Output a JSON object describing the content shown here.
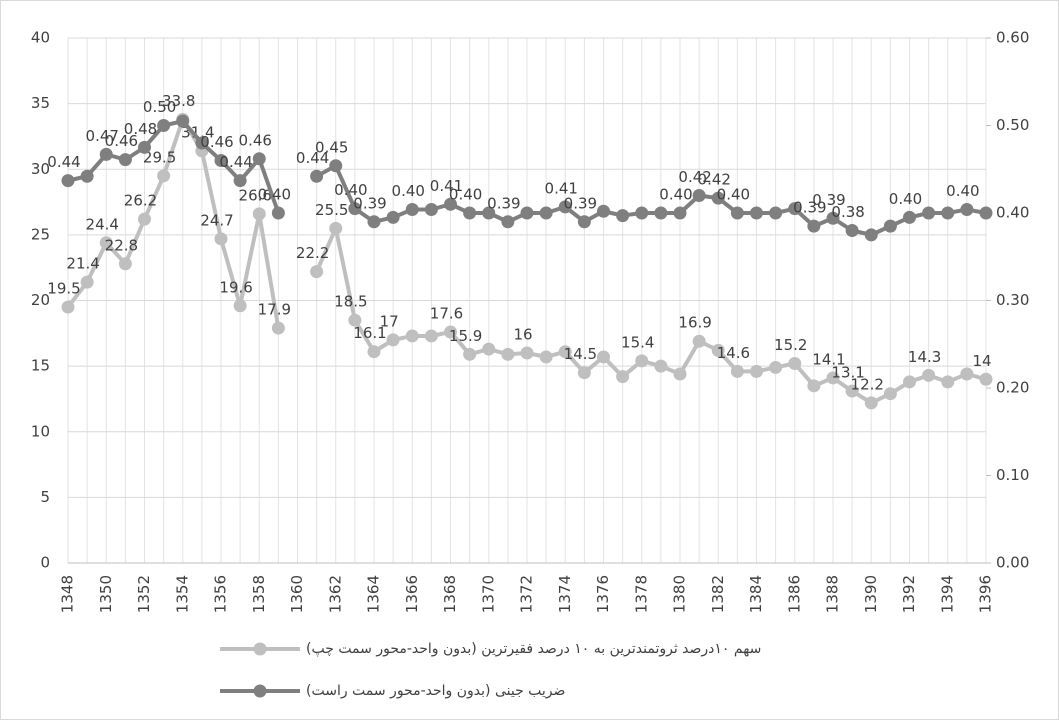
{
  "chart_data": {
    "type": "line",
    "categories": [
      1348,
      null,
      1350,
      null,
      1352,
      null,
      1354,
      null,
      1356,
      null,
      1358,
      null,
      1360,
      null,
      1362,
      null,
      1364,
      null,
      1366,
      null,
      1368,
      null,
      1370,
      null,
      1372,
      null,
      1374,
      null,
      1376,
      null,
      1378,
      null,
      1380,
      null,
      1382,
      null,
      1384,
      null,
      1386,
      null,
      1388,
      null,
      1390,
      null,
      1392,
      null,
      1394,
      null,
      1396
    ],
    "series": [
      {
        "name": "سهم ۱۰درصد ثروتمندترین به ۱۰ درصد فقیرترین (بدون واحد-محور سمت چپ)",
        "color": "#bfbfbf",
        "axis": "y",
        "values": [
          19.5,
          21.4,
          24.4,
          22.8,
          26.2,
          29.5,
          33.8,
          31.4,
          24.7,
          19.6,
          26.6,
          17.9,
          null,
          22.2,
          25.5,
          18.5,
          16.1,
          17,
          17.3,
          17.3,
          17.6,
          15.9,
          16.3,
          15.9,
          16,
          15.7,
          16.1,
          14.5,
          15.7,
          14.2,
          15.4,
          15.0,
          14.4,
          16.9,
          16.2,
          14.6,
          14.6,
          14.9,
          15.2,
          13.5,
          14.1,
          13.1,
          12.2,
          12.9,
          13.8,
          14.3,
          13.8,
          14.4,
          14
        ],
        "value_labels": [
          "19.5",
          "21.4",
          "24.4",
          "22.8",
          "26.2",
          "29.5",
          "33.8",
          "31.4",
          "24.7",
          "19.6",
          "26.6",
          "17.9",
          null,
          "22.2",
          "25.5",
          "18.5",
          "16.1",
          "17",
          null,
          null,
          "17.6",
          "15.9",
          null,
          null,
          "16",
          null,
          null,
          "14.5",
          null,
          null,
          "15.4",
          null,
          null,
          "16.9",
          null,
          "14.6",
          null,
          null,
          "15.2",
          null,
          "14.1",
          "13.1",
          "12.2",
          null,
          null,
          "14.3",
          null,
          null,
          "14"
        ]
      },
      {
        "name": "ضریب جینی (بدون واحد-محور سمت راست)",
        "color": "#7f7f7f",
        "axis": "y2",
        "values": [
          0.437,
          0.442,
          0.467,
          0.461,
          0.475,
          0.5,
          0.505,
          0.48,
          0.46,
          0.437,
          0.462,
          0.4,
          null,
          0.442,
          0.454,
          0.405,
          0.39,
          0.395,
          0.404,
          0.404,
          0.41,
          0.4,
          0.4,
          0.39,
          0.4,
          0.4,
          0.407,
          0.39,
          0.402,
          0.397,
          0.4,
          0.4,
          0.4,
          0.42,
          0.417,
          0.4,
          0.4,
          0.4,
          0.405,
          0.385,
          0.394,
          0.38,
          0.375,
          0.385,
          0.395,
          0.4,
          0.4,
          0.404,
          0.4
        ],
        "value_labels": [
          "0.44",
          null,
          "0.47",
          "0.46",
          "0.48",
          "0.50",
          null,
          null,
          "0.46",
          "0.44",
          "0.46",
          "0.40",
          null,
          "0.44",
          "0.45",
          "0.40",
          "0.39",
          null,
          "0.40",
          null,
          "0.41",
          "0.40",
          null,
          "0.39",
          null,
          null,
          "0.41",
          "0.39",
          null,
          null,
          null,
          null,
          "0.40",
          "0.42",
          "0.42",
          "0.40",
          null,
          null,
          null,
          "0.39",
          "0.39",
          "0.38",
          null,
          null,
          "0.40",
          null,
          null,
          "0.40",
          null
        ]
      }
    ],
    "ylim": [
      0,
      40
    ],
    "yticks": [
      0,
      5,
      10,
      15,
      20,
      25,
      30,
      35,
      40
    ],
    "y2lim": [
      0,
      0.6
    ],
    "y2ticks": [
      {
        "value": 0,
        "label": "0.00"
      },
      {
        "value": 0.1,
        "label": "0.10"
      },
      {
        "value": 0.2,
        "label": "0.20"
      },
      {
        "value": 0.3,
        "label": "0.30"
      },
      {
        "value": 0.4,
        "label": "0.40"
      },
      {
        "value": 0.5,
        "label": "0.50"
      },
      {
        "value": 0.6,
        "label": "0.60"
      }
    ],
    "grid": true
  }
}
